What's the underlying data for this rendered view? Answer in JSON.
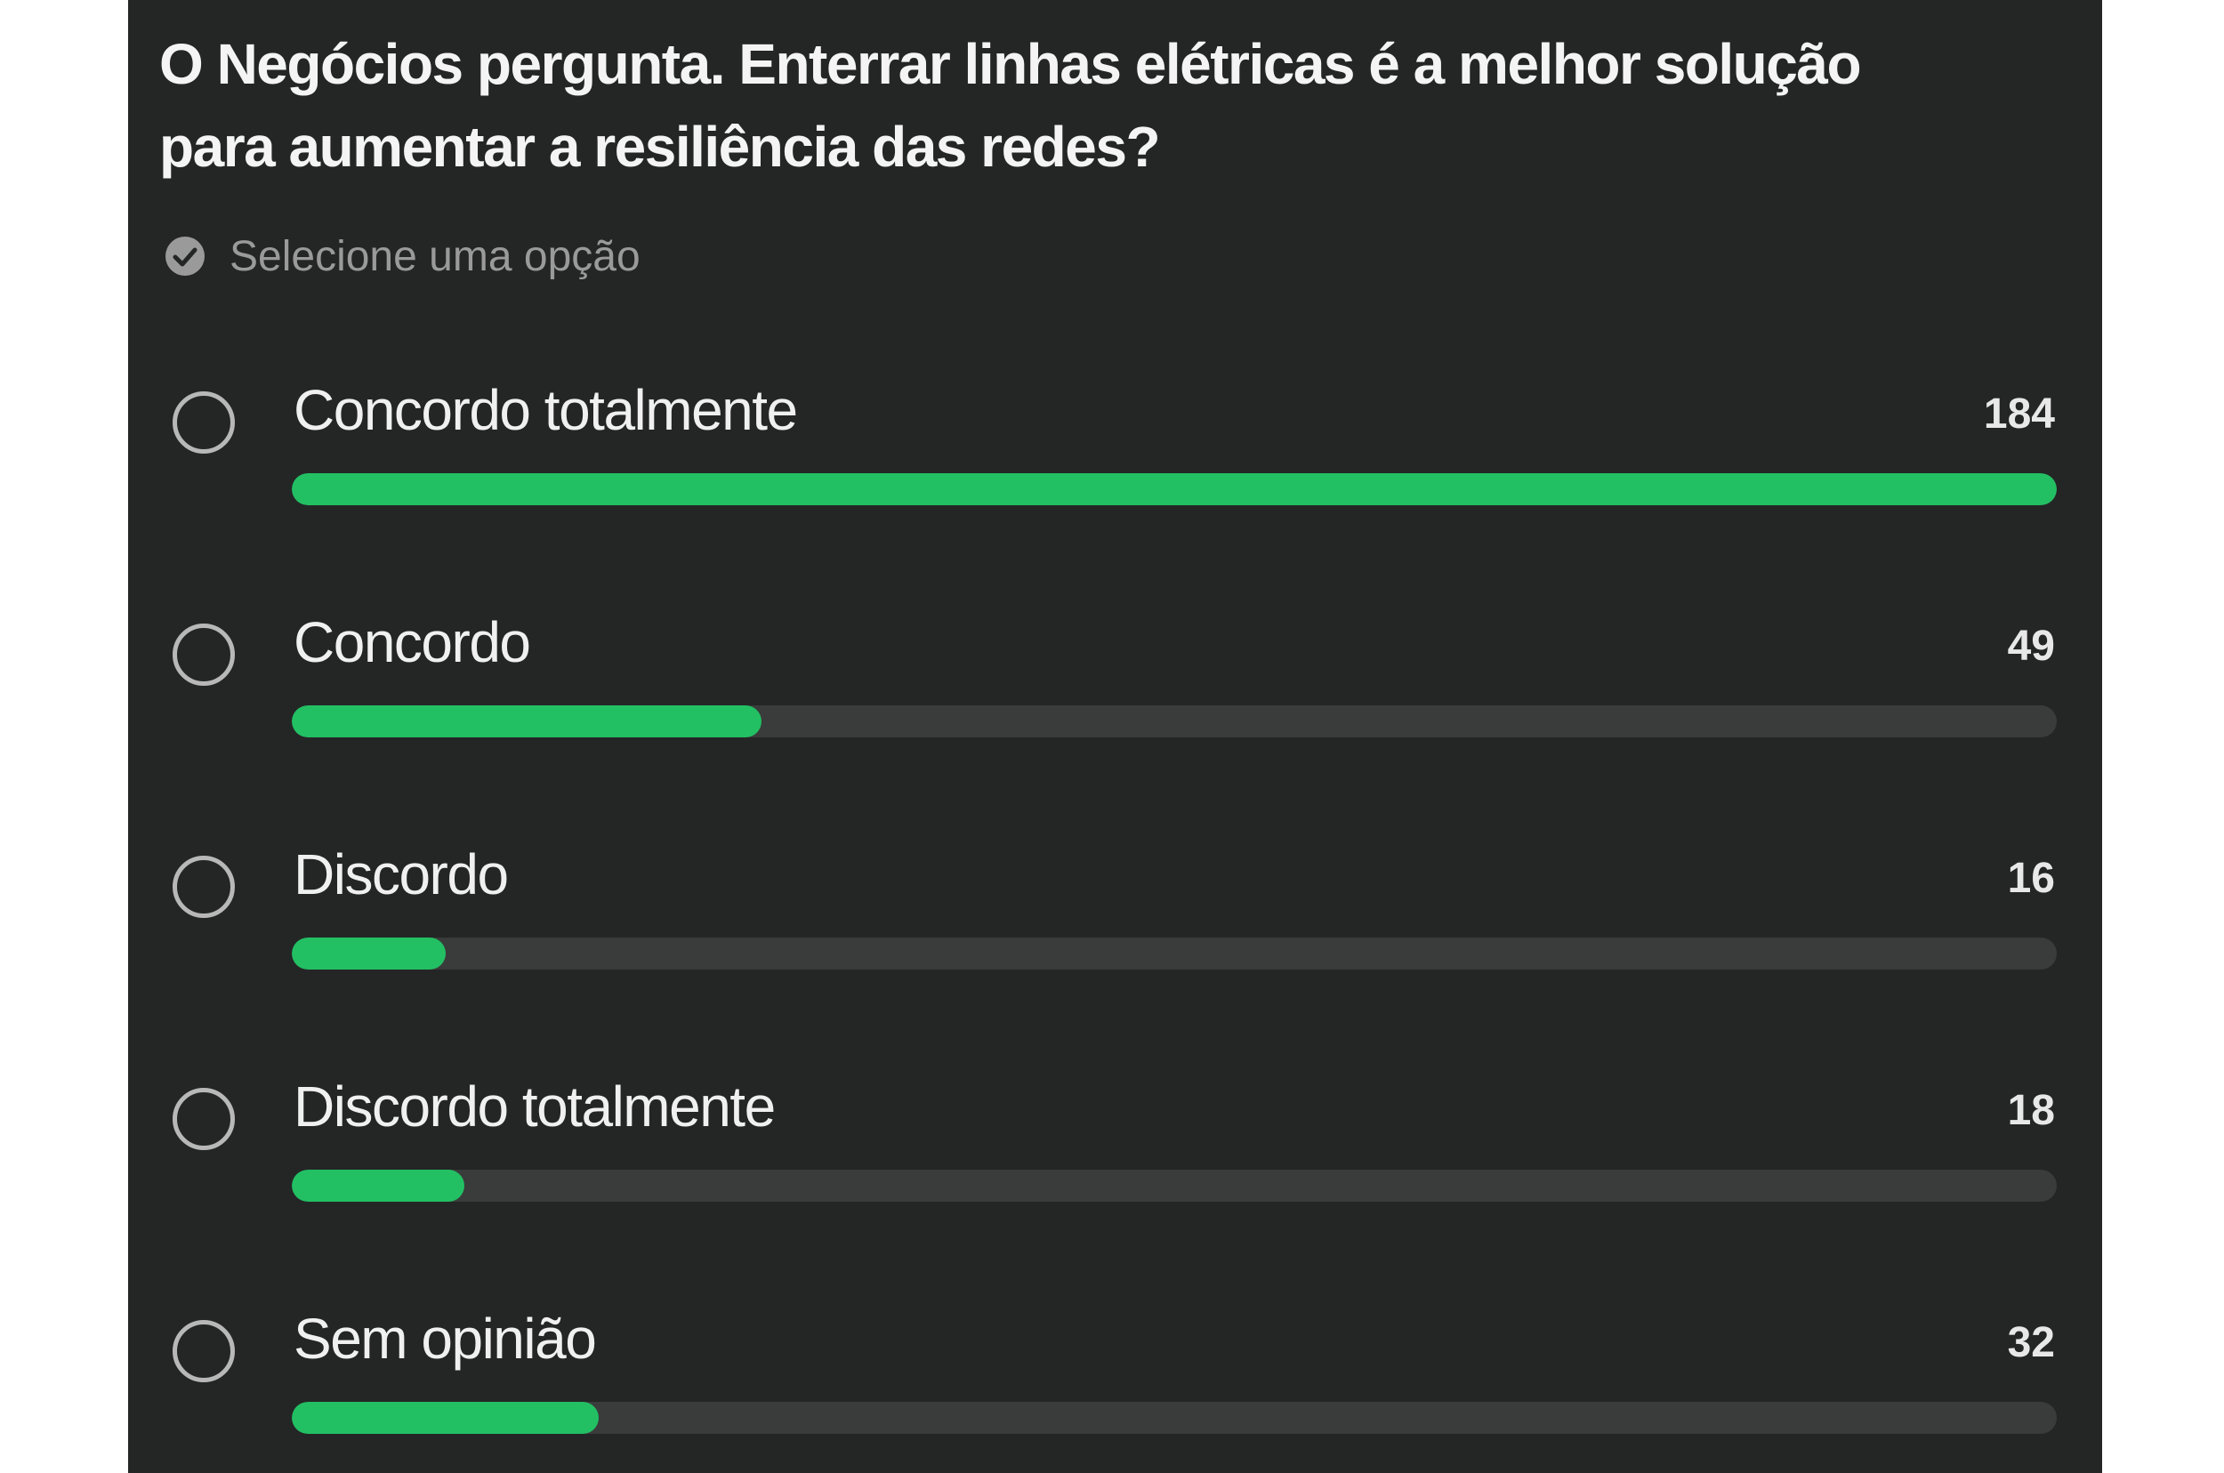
{
  "poll": {
    "question": "O Negócios pergunta. Enterrar linhas elétricas é a melhor solução para aumentar a resiliência das redes?",
    "instruction": "Selecione uma opção",
    "bar_color": "#22c063",
    "options": [
      {
        "label": "Concordo totalmente",
        "votes": 184
      },
      {
        "label": "Concordo",
        "votes": 49
      },
      {
        "label": "Discordo",
        "votes": 16
      },
      {
        "label": "Discordo totalmente",
        "votes": 18
      },
      {
        "label": "Sem opinião",
        "votes": 32
      }
    ]
  }
}
